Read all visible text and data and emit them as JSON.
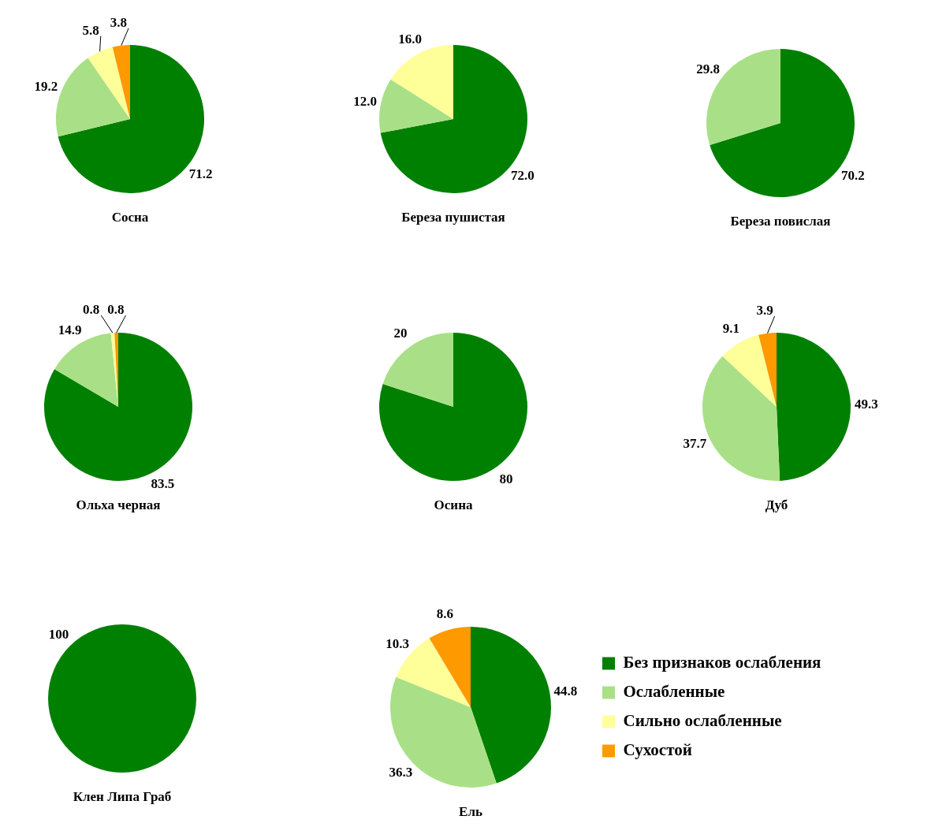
{
  "chart_data": [
    {
      "type": "pie",
      "title": "Сосна",
      "values": [
        71.2,
        19.2,
        5.8,
        3.8
      ],
      "colors": [
        "#008000",
        "#a9e087",
        "#ffff99",
        "#ff9900"
      ],
      "value_labels": [
        "71.2",
        "19.2",
        "5.8",
        "3.8"
      ]
    },
    {
      "type": "pie",
      "title": "Береза пушистая",
      "values": [
        72.0,
        12.0,
        16.0,
        null
      ],
      "colors": [
        "#008000",
        "#a9e087",
        "#ffff99",
        "#ff9900"
      ],
      "value_labels": [
        "72.0",
        "12.0",
        "16.0",
        null
      ]
    },
    {
      "type": "pie",
      "title": "Береза повислая",
      "values": [
        70.2,
        29.8,
        null,
        null
      ],
      "colors": [
        "#008000",
        "#a9e087",
        "#ffff99",
        "#ff9900"
      ],
      "value_labels": [
        "70.2",
        "29.8",
        null,
        null
      ]
    },
    {
      "type": "pie",
      "title": "Ольха черная",
      "values": [
        83.5,
        14.9,
        0.8,
        0.8
      ],
      "colors": [
        "#008000",
        "#a9e087",
        "#ffff99",
        "#ff9900"
      ],
      "value_labels": [
        "83.5",
        "14.9",
        "0.8",
        "0.8"
      ]
    },
    {
      "type": "pie",
      "title": "Осина",
      "values": [
        80,
        20,
        null,
        null
      ],
      "colors": [
        "#008000",
        "#a9e087",
        "#ffff99",
        "#ff9900"
      ],
      "value_labels": [
        "80",
        "20",
        null,
        null
      ]
    },
    {
      "type": "pie",
      "title": "Дуб",
      "values": [
        49.3,
        37.7,
        9.1,
        3.9
      ],
      "colors": [
        "#008000",
        "#a9e087",
        "#ffff99",
        "#ff9900"
      ],
      "value_labels": [
        "49.3",
        "37.7",
        "9.1",
        "3.9"
      ]
    },
    {
      "type": "pie",
      "title": "Клен Липа Граб",
      "values": [
        100,
        null,
        null,
        null
      ],
      "colors": [
        "#008000",
        "#a9e087",
        "#ffff99",
        "#ff9900"
      ],
      "value_labels": [
        "100",
        null,
        null,
        null
      ]
    },
    {
      "type": "pie",
      "title": "Ель",
      "categories": [
        "Без признаков ослабления",
        "Ослабленные",
        "Сильно ослабленные",
        "Сухостой"
      ],
      "values": [
        44.8,
        36.3,
        10.3,
        8.6
      ],
      "colors": [
        "#008000",
        "#a9e087",
        "#ffff99",
        "#ff9900"
      ],
      "value_labels": [
        "44.8",
        "36.3",
        "10.3",
        "8.6"
      ],
      "legend": "right"
    }
  ]
}
